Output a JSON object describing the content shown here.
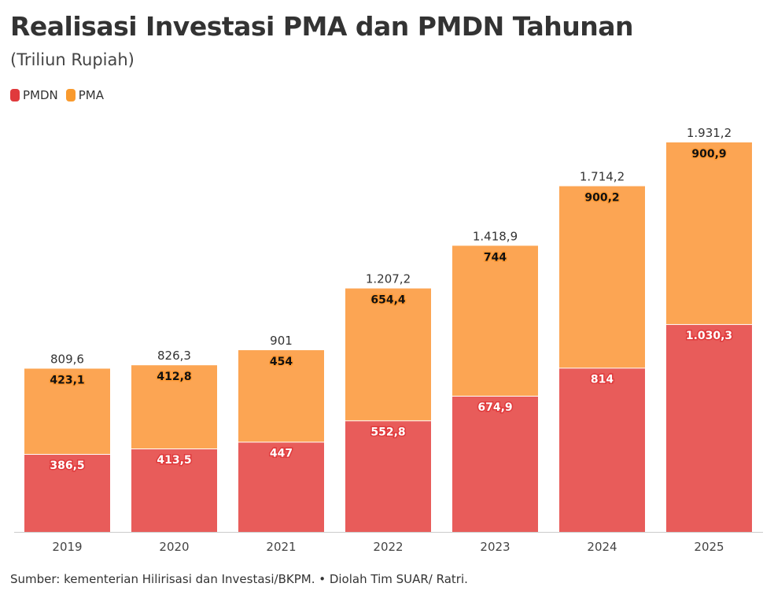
{
  "title": "Realisasi Investasi PMA dan PMDN Tahunan",
  "subtitle": "(Triliun Rupiah)",
  "source": "Sumber: kementerian Hilirisasi dan Investasi/BKPM. • Diolah Tim SUAR/ Ratri.",
  "chart_data": {
    "type": "bar",
    "stacked": true,
    "categories": [
      "2019",
      "2020",
      "2021",
      "2022",
      "2023",
      "2024",
      "2025"
    ],
    "series": [
      {
        "name": "PMDN",
        "color": "#e85c5a",
        "legend_color": "#e03a3c",
        "values": [
          386.5,
          413.5,
          447,
          552.8,
          674.9,
          814,
          1030.3
        ],
        "labels": [
          "386,5",
          "413,5",
          "447",
          "552,8",
          "674,9",
          "814",
          "1.030,3"
        ]
      },
      {
        "name": "PMA",
        "color": "#fca553",
        "legend_color": "#f99a2e",
        "values": [
          423.1,
          412.8,
          454,
          654.4,
          744,
          900.2,
          900.9
        ],
        "labels": [
          "423,1",
          "412,8",
          "454",
          "654,4",
          "744",
          "900,2",
          "900,9"
        ]
      }
    ],
    "totals": [
      "809,6",
      "826,3",
      "901",
      "1.207,2",
      "1.418,9",
      "1.714,2",
      "1.931,2"
    ],
    "legend_position": "top-left",
    "grid": false,
    "ylim": [
      0,
      1931.2
    ]
  }
}
